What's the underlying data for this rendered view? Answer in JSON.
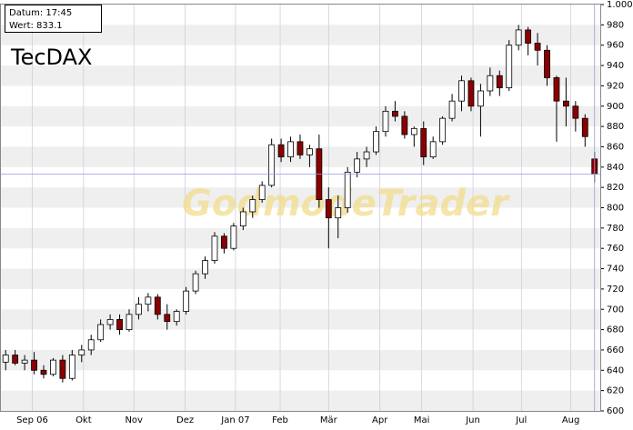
{
  "chart_data": {
    "type": "candlestick",
    "title": "TecDAX",
    "watermark": "GodmodeTrader",
    "info": {
      "datum": "Datum: 17:45",
      "wert": "Wert: 833.1"
    },
    "up_color": "#ffffff",
    "down_color": "#8b0000",
    "grid": true,
    "ylim": [
      600,
      1000
    ],
    "yticks": [
      600,
      620,
      640,
      660,
      680,
      700,
      720,
      740,
      760,
      780,
      800,
      820,
      840,
      860,
      880,
      900,
      920,
      940,
      960,
      980,
      {
        "value": 1000,
        "label": "1.000"
      }
    ],
    "xlim": [
      -0.5,
      62.6
    ],
    "xticks": [
      {
        "value": 2.8,
        "label": "Sep 06"
      },
      {
        "value": 8.2,
        "label": "Okt"
      },
      {
        "value": 13.5,
        "label": "Nov"
      },
      {
        "value": 18.9,
        "label": "Dez"
      },
      {
        "value": 24.2,
        "label": "Jan 07"
      },
      {
        "value": 28.9,
        "label": "Feb"
      },
      {
        "value": 34,
        "label": "Mär"
      },
      {
        "value": 39.4,
        "label": "Apr"
      },
      {
        "value": 43.8,
        "label": "Mai"
      },
      {
        "value": 49.2,
        "label": "Jun"
      },
      {
        "value": 54.3,
        "label": "Jul"
      },
      {
        "value": 59.5,
        "label": "Aug"
      }
    ],
    "open": [
      648,
      655,
      647,
      650,
      640,
      636,
      650,
      632,
      655,
      660,
      670,
      685,
      690,
      680,
      695,
      705,
      712,
      695,
      688,
      698,
      718,
      735,
      748,
      772,
      760,
      782,
      796,
      808,
      822,
      862,
      850,
      865,
      852,
      858,
      808,
      790,
      800,
      835,
      848,
      855,
      875,
      895,
      890,
      872,
      878,
      850,
      865,
      888,
      905,
      925,
      900,
      915,
      930,
      918,
      960,
      975,
      962,
      955,
      928,
      905,
      900,
      888,
      848
    ],
    "high": [
      660,
      660,
      655,
      658,
      645,
      652,
      655,
      660,
      665,
      675,
      690,
      695,
      695,
      700,
      712,
      716,
      715,
      705,
      700,
      722,
      738,
      752,
      776,
      775,
      785,
      800,
      812,
      826,
      868,
      868,
      870,
      872,
      862,
      872,
      820,
      812,
      840,
      855,
      860,
      880,
      900,
      905,
      895,
      880,
      885,
      870,
      890,
      912,
      930,
      928,
      922,
      938,
      935,
      965,
      980,
      978,
      972,
      960,
      930,
      928,
      905,
      892,
      855
    ],
    "low": [
      640,
      645,
      640,
      636,
      632,
      634,
      628,
      630,
      648,
      655,
      668,
      680,
      675,
      678,
      690,
      698,
      690,
      680,
      684,
      695,
      715,
      730,
      745,
      755,
      758,
      778,
      790,
      805,
      820,
      845,
      845,
      848,
      840,
      800,
      760,
      770,
      795,
      830,
      840,
      852,
      870,
      885,
      868,
      860,
      842,
      848,
      862,
      885,
      895,
      895,
      870,
      910,
      910,
      915,
      955,
      950,
      940,
      920,
      865,
      880,
      875,
      860,
      825
    ],
    "close": [
      655,
      647,
      650,
      640,
      636,
      650,
      632,
      655,
      660,
      670,
      685,
      690,
      680,
      695,
      705,
      712,
      695,
      688,
      698,
      718,
      735,
      748,
      772,
      760,
      782,
      796,
      808,
      822,
      862,
      850,
      865,
      852,
      858,
      808,
      790,
      800,
      835,
      848,
      855,
      875,
      895,
      890,
      872,
      878,
      850,
      865,
      888,
      905,
      925,
      900,
      915,
      930,
      918,
      960,
      975,
      962,
      955,
      928,
      905,
      900,
      888,
      870,
      833.1
    ]
  }
}
